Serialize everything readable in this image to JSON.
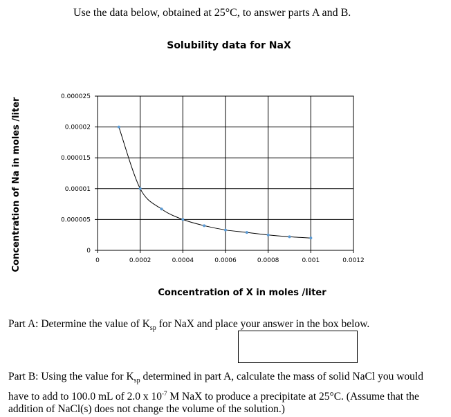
{
  "intro_text": "Use the data below, obtained at 25°C, to answer parts A and B.",
  "chart_data": {
    "type": "scatter",
    "title": "Solubility data for NaX",
    "xlabel": "Concentration of X in moles /liter",
    "ylabel": "Concentration of Na in moles /liter",
    "xlim": [
      0,
      0.0012
    ],
    "ylim": [
      0,
      2.5e-05
    ],
    "x_ticks": [
      "0",
      "0.0002",
      "0.0004",
      "0.0006",
      "0.0008",
      "0.001",
      "0.0012"
    ],
    "y_ticks": [
      "0",
      "0.000005",
      "0.00001",
      "0.000015",
      "0.00002",
      "0.000025"
    ],
    "grid": true,
    "legend": "none",
    "series": [
      {
        "color": "#5b9bd5",
        "x": [
          0.0001,
          0.0002,
          0.0003,
          0.0004,
          0.0005,
          0.0006,
          0.0007,
          0.0008,
          0.0009,
          0.001
        ],
        "y": [
          2e-05,
          1e-05,
          6.7e-06,
          5e-06,
          4e-06,
          3.3e-06,
          2.9e-06,
          2.5e-06,
          2.2e-06,
          2e-06
        ]
      }
    ]
  },
  "partA": {
    "prefix": "Part A:  Determine the value of K",
    "sub": "sp",
    "suffix": " for NaX and place your answer in the box below."
  },
  "partB": {
    "t1": "Part B:  Using the value for K",
    "sub": "sp",
    "t2": " determined in part A, calculate the mass of solid NaCl you would have to add to 100.0 mL of 2.0 x 10",
    "sup": "-7",
    "t3": " M NaX to produce a precipitate at 25°C.  (Assume that the addition of NaCl(s) does not change the volume of the solution.)"
  }
}
